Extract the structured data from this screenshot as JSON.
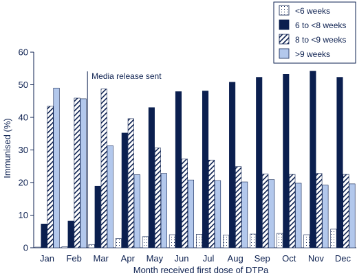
{
  "chart_data": {
    "type": "bar",
    "xlabel": "Month received first dose of DTPa",
    "ylabel": "Immunised (%)",
    "ylim": [
      0,
      60
    ],
    "yticks": [
      0,
      10,
      20,
      30,
      40,
      50,
      60
    ],
    "grid": false,
    "legend_position": "top-right",
    "categories": [
      "Jan",
      "Feb",
      "Mar",
      "Apr",
      "May",
      "Jun",
      "Jul",
      "Aug",
      "Sep",
      "Oct",
      "Nov",
      "Dec"
    ],
    "series": [
      {
        "name": "<6 weeks",
        "pattern": "dotted",
        "color": "#ffffff",
        "values": [
          0.2,
          0.3,
          1.0,
          2.8,
          3.4,
          4.0,
          4.1,
          3.9,
          4.2,
          4.4,
          4.0,
          5.7
        ]
      },
      {
        "name": "6 to <8 weeks",
        "pattern": "solid",
        "color": "#0b1f4f",
        "values": [
          7.3,
          8.2,
          18.9,
          35.2,
          43.0,
          47.9,
          48.1,
          50.8,
          52.3,
          53.2,
          54.2,
          52.3
        ]
      },
      {
        "name": "8 to <9 weeks",
        "pattern": "hatched",
        "color": "#ffffff",
        "values": [
          43.4,
          45.9,
          48.7,
          39.6,
          30.6,
          27.2,
          26.9,
          24.9,
          22.6,
          22.5,
          22.8,
          22.5
        ]
      },
      {
        "name": ">9 weeks",
        "pattern": "solid",
        "color": "#b3c8ec",
        "values": [
          49.0,
          45.7,
          31.3,
          22.4,
          22.8,
          20.8,
          20.6,
          20.2,
          20.9,
          19.8,
          19.2,
          19.6
        ]
      }
    ],
    "annotations": [
      {
        "text": "Media release sent",
        "between": [
          "Feb",
          "Mar"
        ]
      }
    ]
  }
}
